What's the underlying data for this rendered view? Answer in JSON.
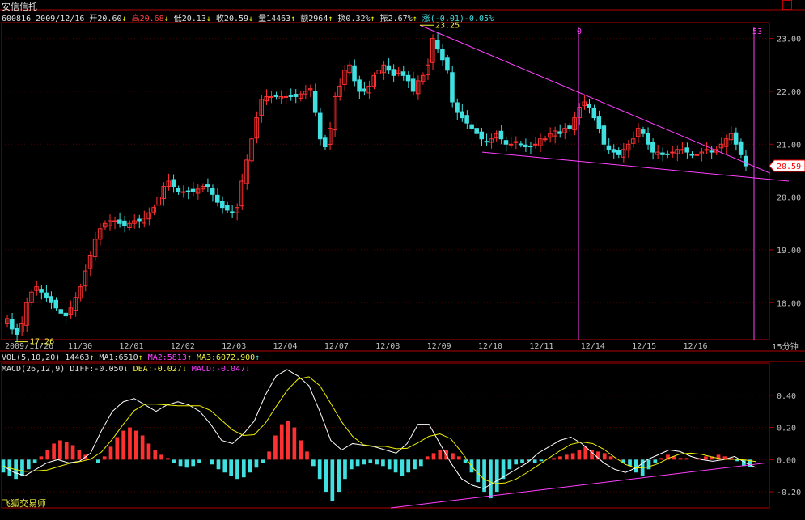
{
  "title": "安信信托",
  "info": {
    "code": "600816",
    "date": "2009/12/16",
    "open": "开20.60",
    "high": "高20.68",
    "low": "低20.13",
    "close": "收20.59",
    "volume": "量14463",
    "amount": "额2964",
    "turnover": "换0.32%",
    "amplitude": "振2.67%",
    "change": "涨(-0.01)-0.05%"
  },
  "vol_bar": {
    "label": "VOL(5,10,20)",
    "value": "14463",
    "ma1": "MA1:6510",
    "ma2": "MA2:5813",
    "ma3": "MA3:6072.900"
  },
  "macd_bar": {
    "label": "MACD(26,12,9)",
    "diff": "DIFF:-0.050",
    "dea": "DEA:-0.027",
    "macd": "MACD:-0.047"
  },
  "period": "15分钟",
  "watermark": "飞狐交易师",
  "colors": {
    "up": "#ff3030",
    "down": "#40e0e0",
    "frame": "#b00000",
    "trend": "#ff40ff",
    "dif": "#ffffff",
    "dea": "#f0f000"
  },
  "chart_data": [
    {
      "type": "candlestick",
      "title": "安信信托",
      "ylim": [
        17.3,
        23.3
      ],
      "y_ticks": [
        18.0,
        19.0,
        20.0,
        21.0,
        22.0,
        23.0
      ],
      "y_tick_labels": [
        "18.00",
        "19.00",
        "20.00",
        "21.00",
        "22.00",
        "23.00"
      ],
      "x_labels": [
        "2009/11/26",
        "11/30",
        "12/01",
        "12/02",
        "12/03",
        "12/04",
        "12/07",
        "12/08",
        "12/09",
        "12/10",
        "12/11",
        "12/14",
        "12/15",
        "12/16"
      ],
      "annotations": [
        {
          "text": "23.25",
          "value": 23.25
        },
        {
          "text": "17.26",
          "value": 17.26
        },
        {
          "text": "0",
          "kind": "vertical-marker"
        },
        {
          "text": "53",
          "kind": "vertical-marker"
        }
      ],
      "last_price": "20.59",
      "close_series": [
        17.7,
        17.5,
        17.4,
        17.6,
        18.0,
        18.2,
        18.3,
        18.2,
        18.1,
        18.0,
        17.9,
        17.8,
        17.75,
        17.9,
        18.1,
        18.3,
        18.6,
        18.9,
        19.2,
        19.4,
        19.5,
        19.55,
        19.55,
        19.5,
        19.45,
        19.5,
        19.55,
        19.55,
        19.6,
        19.7,
        19.8,
        20.0,
        20.2,
        20.3,
        20.2,
        20.1,
        20.1,
        20.1,
        20.1,
        20.15,
        20.2,
        20.2,
        20.05,
        19.9,
        19.8,
        19.75,
        19.7,
        19.8,
        20.3,
        20.7,
        21.1,
        21.5,
        21.85,
        21.9,
        21.9,
        21.9,
        21.9,
        21.9,
        21.9,
        21.9,
        21.95,
        22.0,
        22.05,
        21.6,
        21.1,
        20.95,
        21.3,
        21.9,
        22.1,
        22.4,
        22.5,
        22.2,
        22.0,
        22.0,
        22.1,
        22.3,
        22.4,
        22.5,
        22.4,
        22.3,
        22.4,
        22.3,
        22.2,
        22.0,
        22.2,
        22.3,
        22.5,
        23.0,
        22.8,
        22.6,
        22.4,
        21.8,
        21.6,
        21.5,
        21.4,
        21.3,
        21.2,
        21.1,
        21.05,
        21.1,
        21.2,
        21.1,
        21.0,
        21.0,
        21.05,
        21.0,
        20.95,
        20.95,
        21.0,
        21.1,
        21.1,
        21.2,
        21.25,
        21.2,
        21.3,
        21.3,
        21.5,
        21.7,
        21.8,
        21.7,
        21.5,
        21.3,
        21.0,
        20.9,
        20.85,
        20.8,
        20.9,
        21.0,
        21.1,
        21.3,
        21.2,
        21.0,
        20.85,
        20.85,
        20.8,
        20.8,
        20.85,
        20.9,
        20.9,
        20.85,
        20.8,
        20.8,
        20.85,
        20.9,
        20.85,
        20.9,
        21.0,
        21.1,
        21.2,
        21.0,
        20.8,
        20.59
      ]
    },
    {
      "type": "macd",
      "title": "MACD(26,12,9)",
      "ylim": [
        -0.3,
        0.6
      ],
      "y_ticks": [
        -0.2,
        0.0,
        0.2,
        0.4
      ],
      "y_tick_labels": [
        "-0.20",
        "0.00",
        "0.20",
        "0.40"
      ],
      "hist_series": [
        -0.08,
        -0.1,
        -0.12,
        -0.1,
        -0.06,
        -0.02,
        0.02,
        0.06,
        0.1,
        0.12,
        0.11,
        0.09,
        0.06,
        0.03,
        0.0,
        -0.02,
        0.02,
        0.08,
        0.14,
        0.18,
        0.2,
        0.18,
        0.15,
        0.1,
        0.06,
        0.03,
        0.01,
        -0.02,
        -0.04,
        -0.05,
        -0.04,
        -0.02,
        0.0,
        -0.03,
        -0.06,
        -0.08,
        -0.1,
        -0.12,
        -0.11,
        -0.08,
        -0.05,
        -0.02,
        0.05,
        0.15,
        0.22,
        0.24,
        0.2,
        0.12,
        0.05,
        -0.04,
        -0.12,
        -0.2,
        -0.26,
        -0.2,
        -0.12,
        -0.06,
        -0.04,
        -0.03,
        -0.02,
        -0.03,
        -0.04,
        -0.06,
        -0.08,
        -0.1,
        -0.08,
        -0.06,
        -0.04,
        0.02,
        0.04,
        0.06,
        0.06,
        0.04,
        0.02,
        -0.02,
        -0.08,
        -0.14,
        -0.2,
        -0.24,
        -0.2,
        -0.12,
        -0.06,
        -0.03,
        -0.02,
        -0.01,
        -0.02,
        -0.01,
        0.0,
        0.01,
        0.02,
        0.03,
        0.04,
        0.06,
        0.08,
        0.06,
        0.05,
        0.04,
        0.02,
        0.0,
        -0.02,
        -0.04,
        -0.08,
        -0.1,
        -0.06,
        -0.02,
        0.01,
        0.03,
        0.02,
        0.01,
        0.01,
        0.0,
        0.01,
        0.02,
        0.02,
        0.03,
        0.02,
        0.01,
        -0.01,
        -0.04,
        -0.047
      ],
      "dif_series": [
        -0.04,
        -0.08,
        -0.1,
        -0.06,
        -0.02,
        0.0,
        -0.02,
        -0.01,
        0.04,
        0.18,
        0.3,
        0.36,
        0.38,
        0.34,
        0.3,
        0.34,
        0.36,
        0.34,
        0.3,
        0.22,
        0.12,
        0.1,
        0.16,
        0.24,
        0.4,
        0.52,
        0.56,
        0.52,
        0.46,
        0.3,
        0.12,
        0.06,
        0.1,
        0.09,
        0.08,
        0.06,
        0.04,
        0.1,
        0.22,
        0.22,
        0.1,
        -0.02,
        -0.12,
        -0.16,
        -0.18,
        -0.14,
        -0.1,
        -0.06,
        -0.02,
        0.04,
        0.08,
        0.12,
        0.14,
        0.1,
        0.04,
        -0.02,
        -0.06,
        -0.08,
        -0.05,
        0.0,
        0.03,
        0.06,
        0.05,
        0.02,
        0.0,
        -0.01,
        0.0,
        0.02,
        -0.02,
        -0.05
      ]
    }
  ]
}
